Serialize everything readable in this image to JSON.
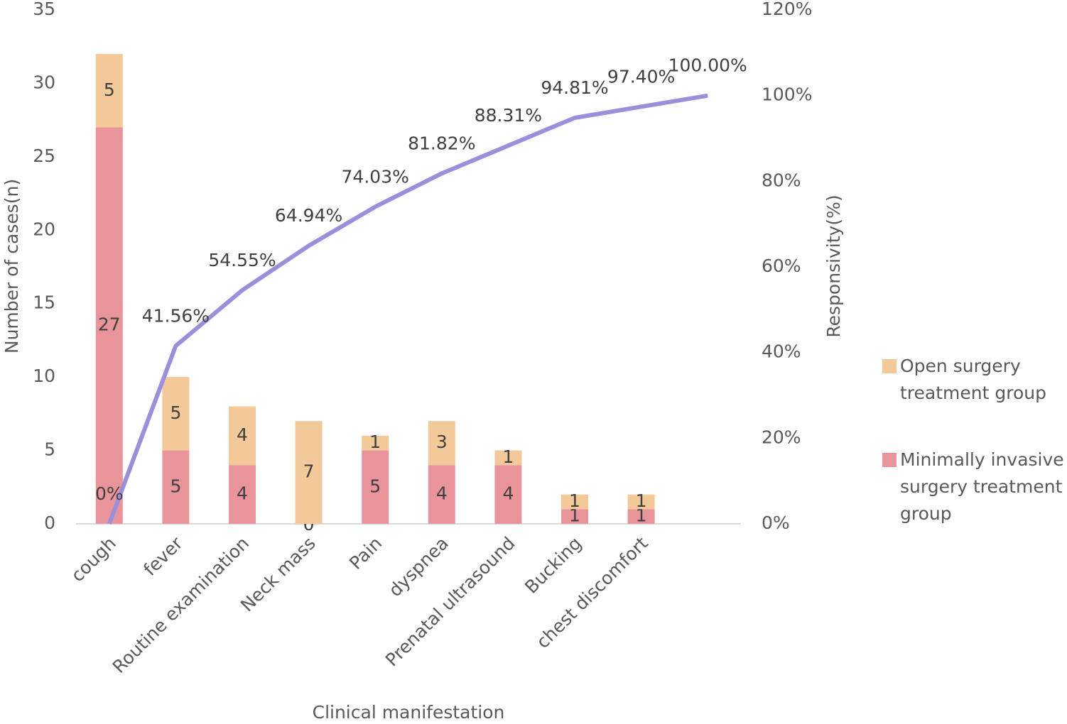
{
  "chart_data": {
    "type": "bar",
    "stacked": true,
    "x_label": "Clinical manifestation",
    "y_label": "Number of cases(n)",
    "y2_label": "Responsivity(%)",
    "categories": [
      "cough",
      "fever",
      "Routine examination",
      "Neck mass",
      "Pain",
      "dyspnea",
      "Prenatal ultrasound",
      "Bucking",
      "chest discomfort",
      null
    ],
    "series": [
      {
        "name": "Minimally invasive surgery treatment group",
        "color": "#e8949a",
        "values": [
          27,
          5,
          4,
          0,
          5,
          4,
          4,
          1,
          1,
          null
        ]
      },
      {
        "name": "Open surgery treatment group",
        "color": "#f4c99a",
        "values": [
          5,
          5,
          4,
          7,
          1,
          3,
          1,
          1,
          1,
          null
        ]
      },
      {
        "type": "line",
        "axis": "y2",
        "color": "#9b8fdb",
        "values": [
          0,
          41.56,
          54.55,
          64.94,
          74.03,
          81.82,
          88.31,
          94.81,
          97.4,
          100.0
        ],
        "value_labels": [
          "0%",
          "41.56%",
          "54.55%",
          "64.94%",
          "74.03%",
          "81.82%",
          "88.31%",
          "94.81%",
          "97.40%",
          "100.00%"
        ]
      }
    ],
    "ylim": [
      0,
      35
    ],
    "yticks": [
      0,
      5,
      10,
      15,
      20,
      25,
      30,
      35
    ],
    "y2lim": [
      0,
      120
    ],
    "y2ticks": [
      {
        "value": 0,
        "label": "0%"
      },
      {
        "value": 20,
        "label": "20%"
      },
      {
        "value": 40,
        "label": "40%"
      },
      {
        "value": 60,
        "label": "60%"
      },
      {
        "value": 80,
        "label": "80%"
      },
      {
        "value": 100,
        "label": "100%"
      },
      {
        "value": 120,
        "label": "120%"
      }
    ],
    "legend": "right"
  }
}
